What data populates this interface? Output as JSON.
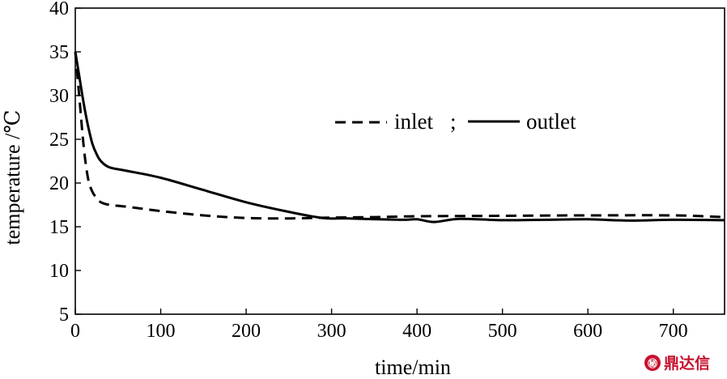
{
  "chart_data": {
    "type": "line",
    "xlabel": "time/min",
    "ylabel": "temperature /℃",
    "xlim": [
      0,
      760
    ],
    "ylim": [
      5,
      40
    ],
    "x_ticks": [
      0,
      100,
      200,
      300,
      400,
      500,
      600,
      700
    ],
    "y_ticks": [
      5,
      10,
      15,
      20,
      25,
      30,
      35,
      40
    ],
    "grid": false,
    "legend_position": "center",
    "series": [
      {
        "name": "inlet",
        "style": "dashed",
        "color": "#000000",
        "x": [
          0,
          5,
          10,
          15,
          20,
          25,
          30,
          40,
          60,
          100,
          150,
          200,
          250,
          300,
          350,
          400,
          500,
          600,
          700,
          760
        ],
        "y": [
          35,
          29.5,
          24,
          20.5,
          19,
          18.3,
          17.8,
          17.5,
          17.3,
          16.8,
          16.3,
          16.0,
          15.95,
          16.05,
          16.1,
          16.2,
          16.25,
          16.3,
          16.3,
          16.1
        ]
      },
      {
        "name": "outlet",
        "style": "solid",
        "color": "#000000",
        "x": [
          0,
          5,
          10,
          15,
          20,
          25,
          30,
          40,
          60,
          100,
          150,
          200,
          250,
          290,
          320,
          380,
          400,
          420,
          450,
          500,
          550,
          600,
          650,
          700,
          760
        ],
        "y": [
          35,
          32,
          29,
          26.5,
          24.5,
          23.3,
          22.5,
          21.8,
          21.4,
          20.6,
          19.2,
          17.8,
          16.7,
          16.0,
          15.95,
          15.8,
          15.85,
          15.55,
          15.9,
          15.75,
          15.8,
          15.85,
          15.7,
          15.8,
          15.75
        ]
      }
    ],
    "legend_separator": ";"
  },
  "watermark": {
    "text": "鼎达信",
    "color": "#c8102e",
    "icon": "cnki-logo-icon"
  }
}
